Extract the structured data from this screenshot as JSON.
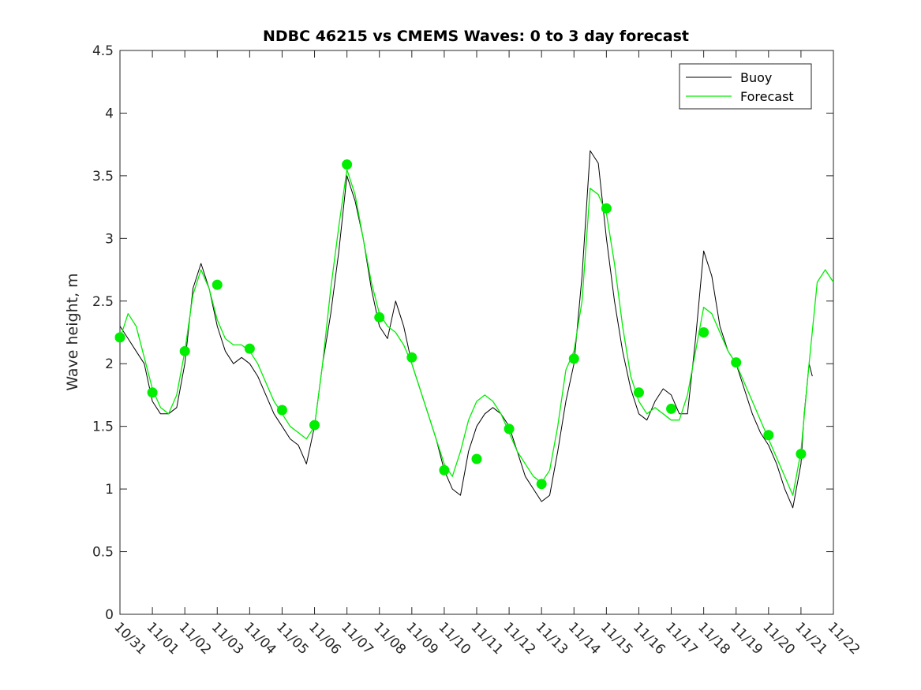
{
  "chart_data": {
    "type": "line",
    "title": "NDBC 46215 vs CMEMS Waves: 0 to 3 day forecast",
    "xlabel": "",
    "ylabel": "Wave height, m",
    "xlim": [
      0,
      22
    ],
    "ylim": [
      0,
      4.5
    ],
    "yticks": [
      0,
      0.5,
      1,
      1.5,
      2,
      2.5,
      3,
      3.5,
      4,
      4.5
    ],
    "ytick_labels": [
      "0",
      "0.5",
      "1",
      "1.5",
      "2",
      "2.5",
      "3",
      "3.5",
      "4",
      "4.5"
    ],
    "xtick_labels": [
      "10/31",
      "11/01",
      "11/02",
      "11/03",
      "11/04",
      "11/05",
      "11/06",
      "11/07",
      "11/08",
      "11/09",
      "11/10",
      "11/11",
      "11/12",
      "11/13",
      "11/14",
      "11/15",
      "11/16",
      "11/17",
      "11/18",
      "11/19",
      "11/20",
      "11/21",
      "11/22"
    ],
    "legend": {
      "position": "top-right",
      "entries": [
        "Buoy",
        "Forecast"
      ]
    },
    "colors": {
      "buoy": "#000000",
      "forecast": "#00ee00",
      "axis": "#262626"
    },
    "series": [
      {
        "name": "Buoy",
        "x": [
          0,
          0.25,
          0.5,
          0.75,
          1.0,
          1.25,
          1.5,
          1.75,
          2.0,
          2.25,
          2.5,
          2.75,
          3.0,
          3.25,
          3.5,
          3.75,
          4.0,
          4.25,
          4.5,
          4.75,
          5.0,
          5.25,
          5.5,
          5.75,
          6.0,
          6.25,
          6.5,
          6.75,
          7.0,
          7.25,
          7.5,
          7.75,
          8.0,
          8.25,
          8.5,
          8.75,
          9.0,
          9.25,
          9.5,
          9.75,
          10.0,
          10.25,
          10.5,
          10.75,
          11.0,
          11.25,
          11.5,
          11.75,
          12.0,
          12.25,
          12.5,
          12.75,
          13.0,
          13.25,
          13.5,
          13.75,
          14.0,
          14.25,
          14.5,
          14.75,
          15.0,
          15.25,
          15.5,
          15.75,
          16.0,
          16.25,
          16.5,
          16.75,
          17.0,
          17.25,
          17.5,
          17.75,
          18.0,
          18.25,
          18.5,
          18.75,
          19.0,
          19.25,
          19.5,
          19.75,
          20.0,
          20.25,
          20.5,
          20.75,
          21.0,
          21.1,
          21.25,
          21.35
        ],
        "values": [
          2.3,
          2.2,
          2.1,
          2.0,
          1.7,
          1.6,
          1.6,
          1.65,
          2.0,
          2.6,
          2.8,
          2.6,
          2.3,
          2.1,
          2.0,
          2.05,
          2.0,
          1.9,
          1.75,
          1.6,
          1.5,
          1.4,
          1.35,
          1.2,
          1.5,
          2.0,
          2.4,
          2.9,
          3.5,
          3.3,
          3.0,
          2.6,
          2.3,
          2.2,
          2.5,
          2.3,
          2.0,
          1.8,
          1.6,
          1.4,
          1.15,
          1.0,
          0.95,
          1.3,
          1.5,
          1.6,
          1.65,
          1.6,
          1.5,
          1.3,
          1.1,
          1.0,
          0.9,
          0.95,
          1.3,
          1.7,
          2.0,
          2.7,
          3.7,
          3.6,
          3.0,
          2.5,
          2.1,
          1.8,
          1.6,
          1.55,
          1.7,
          1.8,
          1.75,
          1.6,
          1.6,
          2.2,
          2.9,
          2.7,
          2.3,
          2.1,
          2.0,
          1.8,
          1.6,
          1.45,
          1.35,
          1.2,
          1.0,
          0.85,
          1.2,
          1.6,
          2.0,
          1.9
        ]
      },
      {
        "name": "Forecast",
        "x": [
          0,
          0.25,
          0.5,
          0.75,
          1.0,
          1.25,
          1.5,
          1.75,
          2.0,
          2.25,
          2.5,
          2.75,
          3.0,
          3.25,
          3.5,
          3.75,
          4.0,
          4.25,
          4.5,
          4.75,
          5.0,
          5.25,
          5.5,
          5.75,
          6.0,
          6.25,
          6.5,
          6.75,
          7.0,
          7.25,
          7.5,
          7.75,
          8.0,
          8.25,
          8.5,
          8.75,
          9.0,
          9.25,
          9.5,
          9.75,
          10.0,
          10.25,
          10.5,
          10.75,
          11.0,
          11.25,
          11.5,
          11.75,
          12.0,
          12.25,
          12.5,
          12.75,
          13.0,
          13.25,
          13.5,
          13.75,
          14.0,
          14.25,
          14.5,
          14.75,
          15.0,
          15.25,
          15.5,
          15.75,
          16.0,
          16.25,
          16.5,
          16.75,
          17.0,
          17.25,
          17.5,
          17.75,
          18.0,
          18.25,
          18.5,
          18.75,
          19.0,
          19.25,
          19.5,
          19.75,
          20.0,
          20.25,
          20.5,
          20.75,
          21.0,
          21.25,
          21.5,
          21.75,
          22.0
        ],
        "values": [
          2.2,
          2.4,
          2.3,
          2.05,
          1.8,
          1.65,
          1.6,
          1.75,
          2.1,
          2.55,
          2.75,
          2.6,
          2.35,
          2.2,
          2.15,
          2.15,
          2.1,
          2.0,
          1.85,
          1.7,
          1.6,
          1.5,
          1.45,
          1.4,
          1.5,
          2.0,
          2.6,
          3.1,
          3.55,
          3.35,
          3.0,
          2.65,
          2.4,
          2.3,
          2.25,
          2.15,
          2.0,
          1.8,
          1.6,
          1.4,
          1.2,
          1.1,
          1.3,
          1.55,
          1.7,
          1.75,
          1.7,
          1.6,
          1.45,
          1.3,
          1.2,
          1.1,
          1.05,
          1.15,
          1.5,
          1.95,
          2.1,
          2.5,
          3.4,
          3.35,
          3.2,
          2.8,
          2.3,
          1.9,
          1.7,
          1.6,
          1.65,
          1.6,
          1.55,
          1.55,
          1.75,
          2.1,
          2.45,
          2.4,
          2.25,
          2.1,
          2.0,
          1.85,
          1.7,
          1.55,
          1.4,
          1.25,
          1.1,
          0.95,
          1.3,
          2.0,
          2.65,
          2.75,
          2.65
        ]
      }
    ],
    "forecast_markers": {
      "x": [
        0,
        1,
        2,
        3,
        4,
        5,
        6,
        7,
        8,
        9,
        10,
        11,
        12,
        13,
        14,
        15,
        16,
        17,
        18,
        19,
        20,
        21
      ],
      "values": [
        2.21,
        1.77,
        2.1,
        2.63,
        2.12,
        1.63,
        1.51,
        3.59,
        2.37,
        2.05,
        1.15,
        1.24,
        1.48,
        1.04,
        2.04,
        3.24,
        1.77,
        1.64,
        2.25,
        2.01,
        1.43,
        1.28
      ]
    }
  }
}
